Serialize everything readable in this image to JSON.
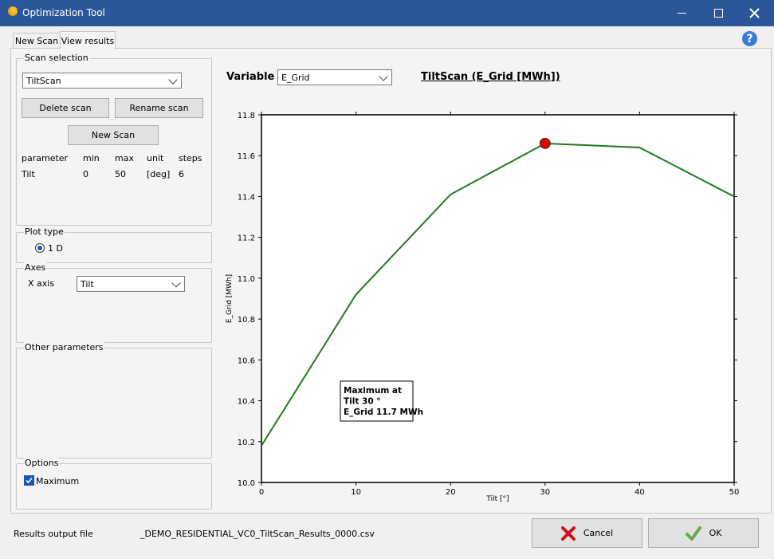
{
  "window": {
    "title": "Optimization Tool",
    "help_icon": "?"
  },
  "tabs": [
    "New Scan",
    "View results"
  ],
  "scan_selection": {
    "label": "Scan selection",
    "selected_scan": "TiltScan",
    "buttons": [
      "Delete scan",
      "Rename scan",
      "New Scan"
    ],
    "table": {
      "headers": [
        "parameter",
        "min",
        "max",
        "unit",
        "steps"
      ],
      "rows": [
        [
          "Tilt",
          "0",
          "50",
          "[deg]",
          "6"
        ]
      ]
    }
  },
  "plot_type": {
    "label": "Plot type",
    "option": "1 D"
  },
  "axes": {
    "label": "Axes",
    "x_axis_label": "X axis",
    "x_axis_value": "Tilt"
  },
  "other_parameters": {
    "label": "Other parameters"
  },
  "options": {
    "label": "Options",
    "maximum": "Maximum"
  },
  "variable": {
    "label": "Variable",
    "value": "E_Grid"
  },
  "footer": {
    "output_label": "Results output file",
    "output_file": "_DEMO_RESIDENTIAL_VC0_TiltScan_Results_0000.csv",
    "cancel": "Cancel",
    "ok": "OK"
  },
  "chart_data": {
    "type": "line",
    "title": "TiltScan (E_Grid [MWh])",
    "x_label": "Tilt [°]",
    "y_label": "E_Grid [MWh]",
    "x": [
      0,
      10,
      20,
      30,
      40,
      50
    ],
    "series": [
      {
        "name": "E_Grid",
        "color": "#1e7b1e",
        "values": [
          10.18,
          10.92,
          11.41,
          11.66,
          11.64,
          11.4
        ]
      }
    ],
    "xlim": [
      0,
      50
    ],
    "xticks": [
      0,
      10,
      20,
      30,
      40,
      50
    ],
    "ylim": [
      10,
      11.8
    ],
    "yticks": [
      {
        "value": 10,
        "label": "10.0"
      },
      10.2,
      10.4,
      10.6,
      10.8,
      {
        "value": 11,
        "label": "11.0"
      },
      11.2,
      11.4,
      11.6,
      11.8
    ],
    "grid": false,
    "show_maximum": true,
    "max_marker_color": "#e00000",
    "annotation": [
      "Maximum at",
      "Tilt 30 °",
      "E_Grid 11.7 MWh"
    ]
  }
}
